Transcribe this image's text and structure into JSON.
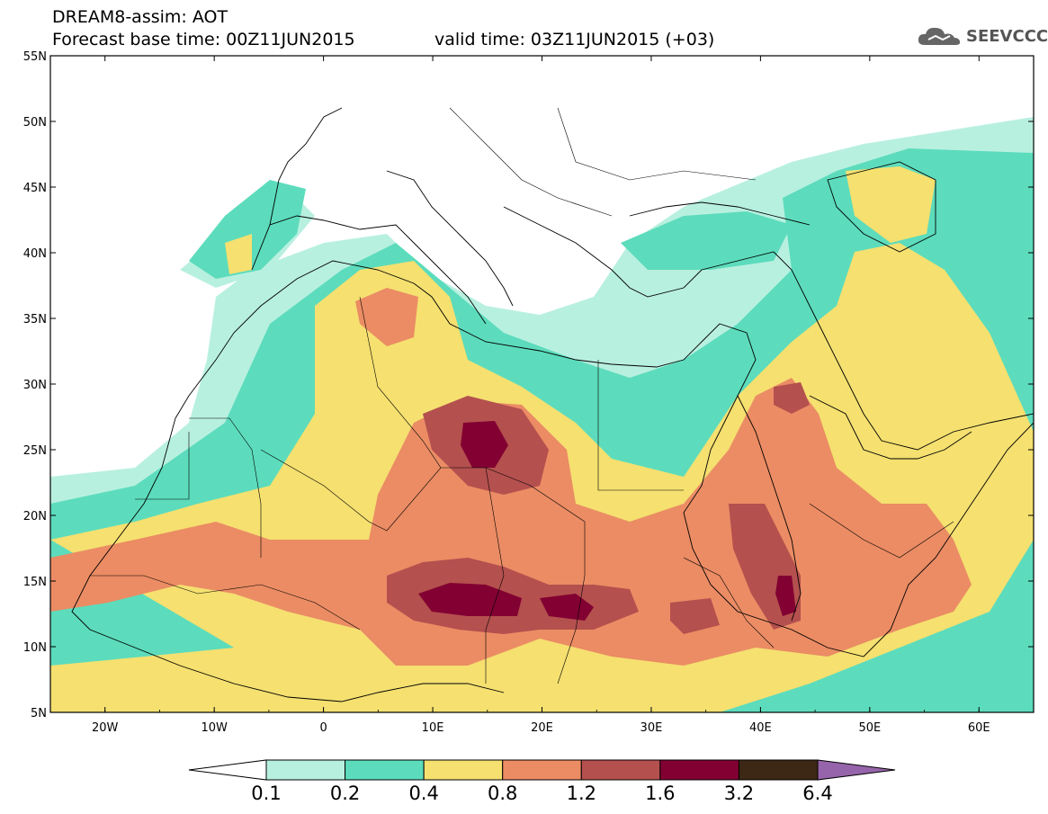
{
  "header": {
    "title_line1": "DREAM8-assim: AOT",
    "title_line2": "Forecast base time: 00Z11JUN2015",
    "valid_time": "valid time: 03Z11JUN2015 (+03)"
  },
  "logo": {
    "text": "SEEVCCC",
    "icon": "cloud-icon"
  },
  "map": {
    "lat_labels": [
      "55N",
      "50N",
      "45N",
      "40N",
      "35N",
      "30N",
      "25N",
      "20N",
      "15N",
      "10N",
      "5N"
    ],
    "lon_labels": [
      "20W",
      "10W",
      "0",
      "10E",
      "20E",
      "30E",
      "40E",
      "50E",
      "60E"
    ],
    "lon_range": [
      -25,
      65
    ],
    "lat_range": [
      5,
      55
    ],
    "field": "AOT"
  },
  "colorbar": {
    "labels": [
      "0.1",
      "0.2",
      "0.4",
      "0.8",
      "1.2",
      "1.6",
      "3.2",
      "6.4"
    ],
    "colors": [
      "#ffffff",
      "#b8f0e0",
      "#5cdcbc",
      "#f5e070",
      "#eb8c64",
      "#b4504e",
      "#820032",
      "#3c2814",
      "#9664aa"
    ]
  }
}
